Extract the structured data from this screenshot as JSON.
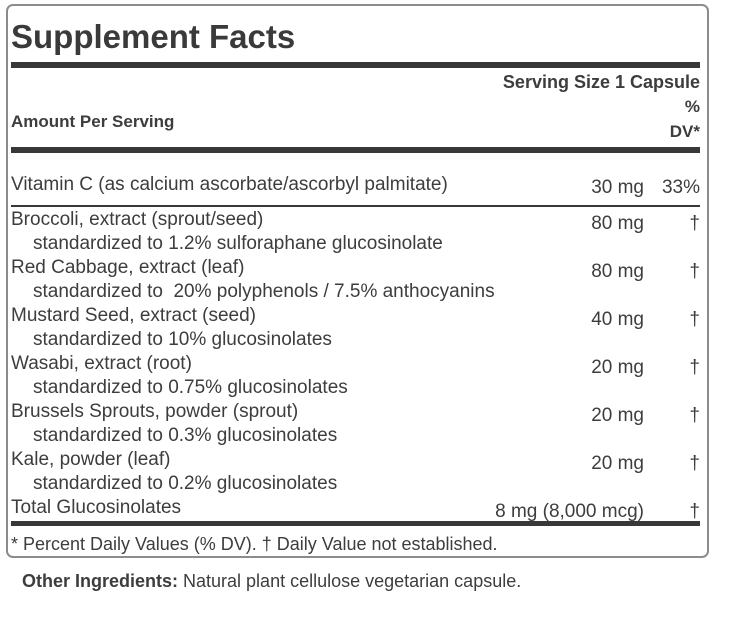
{
  "label": {
    "title": "Supplement Facts",
    "serving_size": "Serving Size 1 Capsule",
    "amount_header": "Amount Per Serving",
    "dv_header_line1": "%",
    "dv_header_line2": "DV*",
    "rows": [
      {
        "name": "Vitamin C (as calcium ascorbate/ascorbyl palmitate)",
        "amount": "30 mg",
        "dv": "33%"
      },
      {
        "name": "Broccoli, extract (sprout/seed)",
        "amount": "80 mg",
        "dv": "†",
        "sub": "standardized to 1.2% sulforaphane glucosinolate"
      },
      {
        "name": "Red Cabbage, extract (leaf)",
        "amount": "80 mg",
        "dv": "†",
        "sub": "standardized to  20% polyphenols / 7.5% anthocyanins"
      },
      {
        "name": "Mustard Seed, extract (seed)",
        "amount": "40 mg",
        "dv": "†",
        "sub": "standardized to 10% glucosinolates"
      },
      {
        "name": "Wasabi, extract (root)",
        "amount": "20 mg",
        "dv": "†",
        "sub": "standardized to 0.75% glucosinolates"
      },
      {
        "name": "Brussels Sprouts, powder (sprout)",
        "amount": "20 mg",
        "dv": "†",
        "sub": "standardized to 0.3% glucosinolates"
      },
      {
        "name": "Kale, powder (leaf)",
        "amount": "20 mg",
        "dv": "†",
        "sub": "standardized to 0.2% glucosinolates"
      },
      {
        "name": "Total Glucosinolates",
        "amount": "8 mg (8,000 mcg)",
        "dv": "†"
      }
    ],
    "footnote": "* Percent Daily Values (% DV). † Daily Value not established.",
    "other_ingredients_label": "Other Ingredients:",
    "other_ingredients_text": " Natural plant cellulose vegetarian capsule."
  },
  "colors": {
    "text": "#3d3d3d",
    "rule": "#383838",
    "border": "#8c8c8c",
    "background": "#ffffff"
  }
}
